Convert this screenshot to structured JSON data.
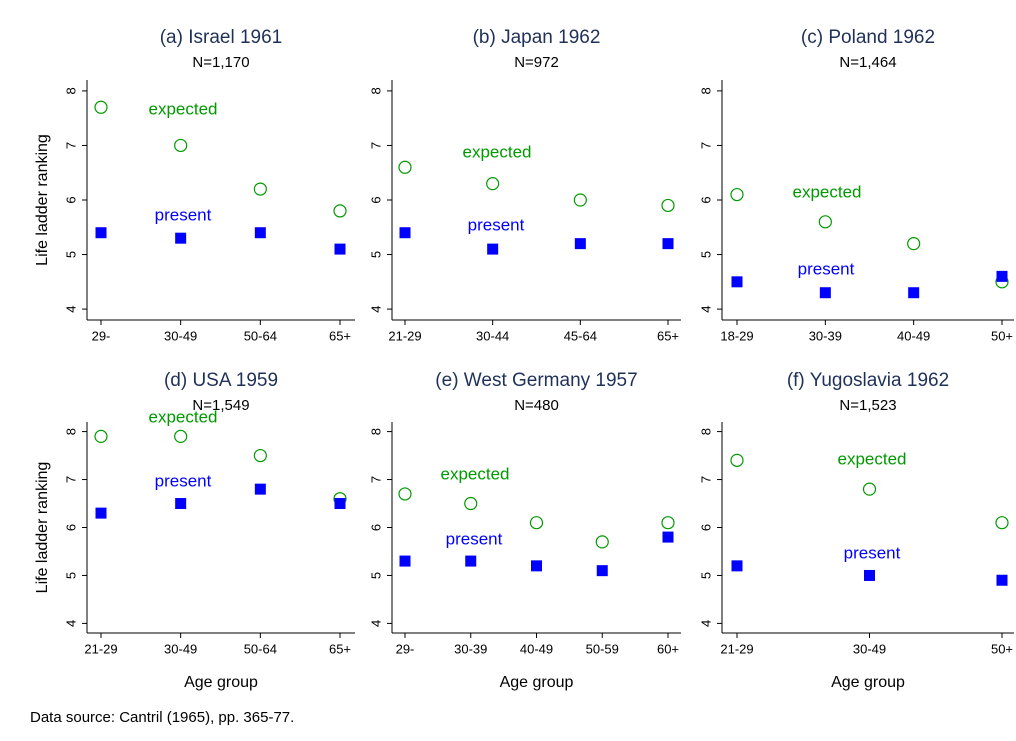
{
  "chart_data": [
    {
      "type": "scatter",
      "title": "(a) Israel 1961",
      "subtitle": "N=1,170",
      "y_label": "Life ladder ranking",
      "categories": [
        "29-",
        "30-49",
        "50-64",
        "65+"
      ],
      "series": [
        {
          "name": "expected",
          "color": "#009900",
          "marker": "circle",
          "values": [
            7.7,
            7.0,
            6.2,
            5.8
          ]
        },
        {
          "name": "present",
          "color": "#0000ff",
          "marker": "square",
          "values": [
            5.4,
            5.3,
            5.4,
            5.1
          ]
        }
      ],
      "ylim": [
        3.8,
        8.2
      ],
      "yticks": [
        4,
        5,
        6,
        7,
        8
      ]
    },
    {
      "type": "scatter",
      "title": "(b) Japan 1962",
      "subtitle": "N=972",
      "categories": [
        "21-29",
        "30-44",
        "45-64",
        "65+"
      ],
      "series": [
        {
          "name": "expected",
          "color": "#009900",
          "marker": "circle",
          "values": [
            6.6,
            6.3,
            6.0,
            5.9
          ]
        },
        {
          "name": "present",
          "color": "#0000ff",
          "marker": "square",
          "values": [
            5.4,
            5.1,
            5.2,
            5.2
          ]
        }
      ],
      "ylim": [
        3.8,
        8.2
      ],
      "yticks": [
        4,
        5,
        6,
        7,
        8
      ]
    },
    {
      "type": "scatter",
      "title": "(c) Poland 1962",
      "subtitle": "N=1,464",
      "categories": [
        "18-29",
        "30-39",
        "40-49",
        "50+"
      ],
      "series": [
        {
          "name": "expected",
          "color": "#009900",
          "marker": "circle",
          "values": [
            6.1,
            5.6,
            5.2,
            4.5
          ]
        },
        {
          "name": "present",
          "color": "#0000ff",
          "marker": "square",
          "values": [
            4.5,
            4.3,
            4.3,
            4.6
          ]
        }
      ],
      "ylim": [
        3.8,
        8.2
      ],
      "yticks": [
        4,
        5,
        6,
        7,
        8
      ]
    },
    {
      "type": "scatter",
      "title": "(d) USA 1959",
      "subtitle": "N=1,549",
      "y_label": "Life ladder ranking",
      "x_label": "Age group",
      "categories": [
        "21-29",
        "30-49",
        "50-64",
        "65+"
      ],
      "series": [
        {
          "name": "expected",
          "color": "#009900",
          "marker": "circle",
          "values": [
            7.9,
            7.9,
            7.5,
            6.6
          ]
        },
        {
          "name": "present",
          "color": "#0000ff",
          "marker": "square",
          "values": [
            6.3,
            6.5,
            6.8,
            6.5
          ]
        }
      ],
      "ylim": [
        3.8,
        8.2
      ],
      "yticks": [
        4,
        5,
        6,
        7,
        8
      ]
    },
    {
      "type": "scatter",
      "title": "(e) West Germany 1957",
      "subtitle": "N=480",
      "x_label": "Age group",
      "categories": [
        "29-",
        "30-39",
        "40-49",
        "50-59",
        "60+"
      ],
      "series": [
        {
          "name": "expected",
          "color": "#009900",
          "marker": "circle",
          "values": [
            6.7,
            6.5,
            6.1,
            5.7,
            6.1
          ]
        },
        {
          "name": "present",
          "color": "#0000ff",
          "marker": "square",
          "values": [
            5.3,
            5.3,
            5.2,
            5.1,
            5.8
          ]
        }
      ],
      "ylim": [
        3.8,
        8.2
      ],
      "yticks": [
        4,
        5,
        6,
        7,
        8
      ]
    },
    {
      "type": "scatter",
      "title": "(f) Yugoslavia 1962",
      "subtitle": "N=1,523",
      "x_label": "Age group",
      "categories": [
        "21-29",
        "30-49",
        "50+"
      ],
      "series": [
        {
          "name": "expected",
          "color": "#009900",
          "marker": "circle",
          "values": [
            7.4,
            6.8,
            6.1
          ]
        },
        {
          "name": "present",
          "color": "#0000ff",
          "marker": "square",
          "values": [
            5.2,
            5.0,
            4.9
          ]
        }
      ],
      "ylim": [
        3.8,
        8.2
      ],
      "yticks": [
        4,
        5,
        6,
        7,
        8
      ]
    }
  ],
  "note": "Data source: Cantril (1965), pp. 365-77."
}
